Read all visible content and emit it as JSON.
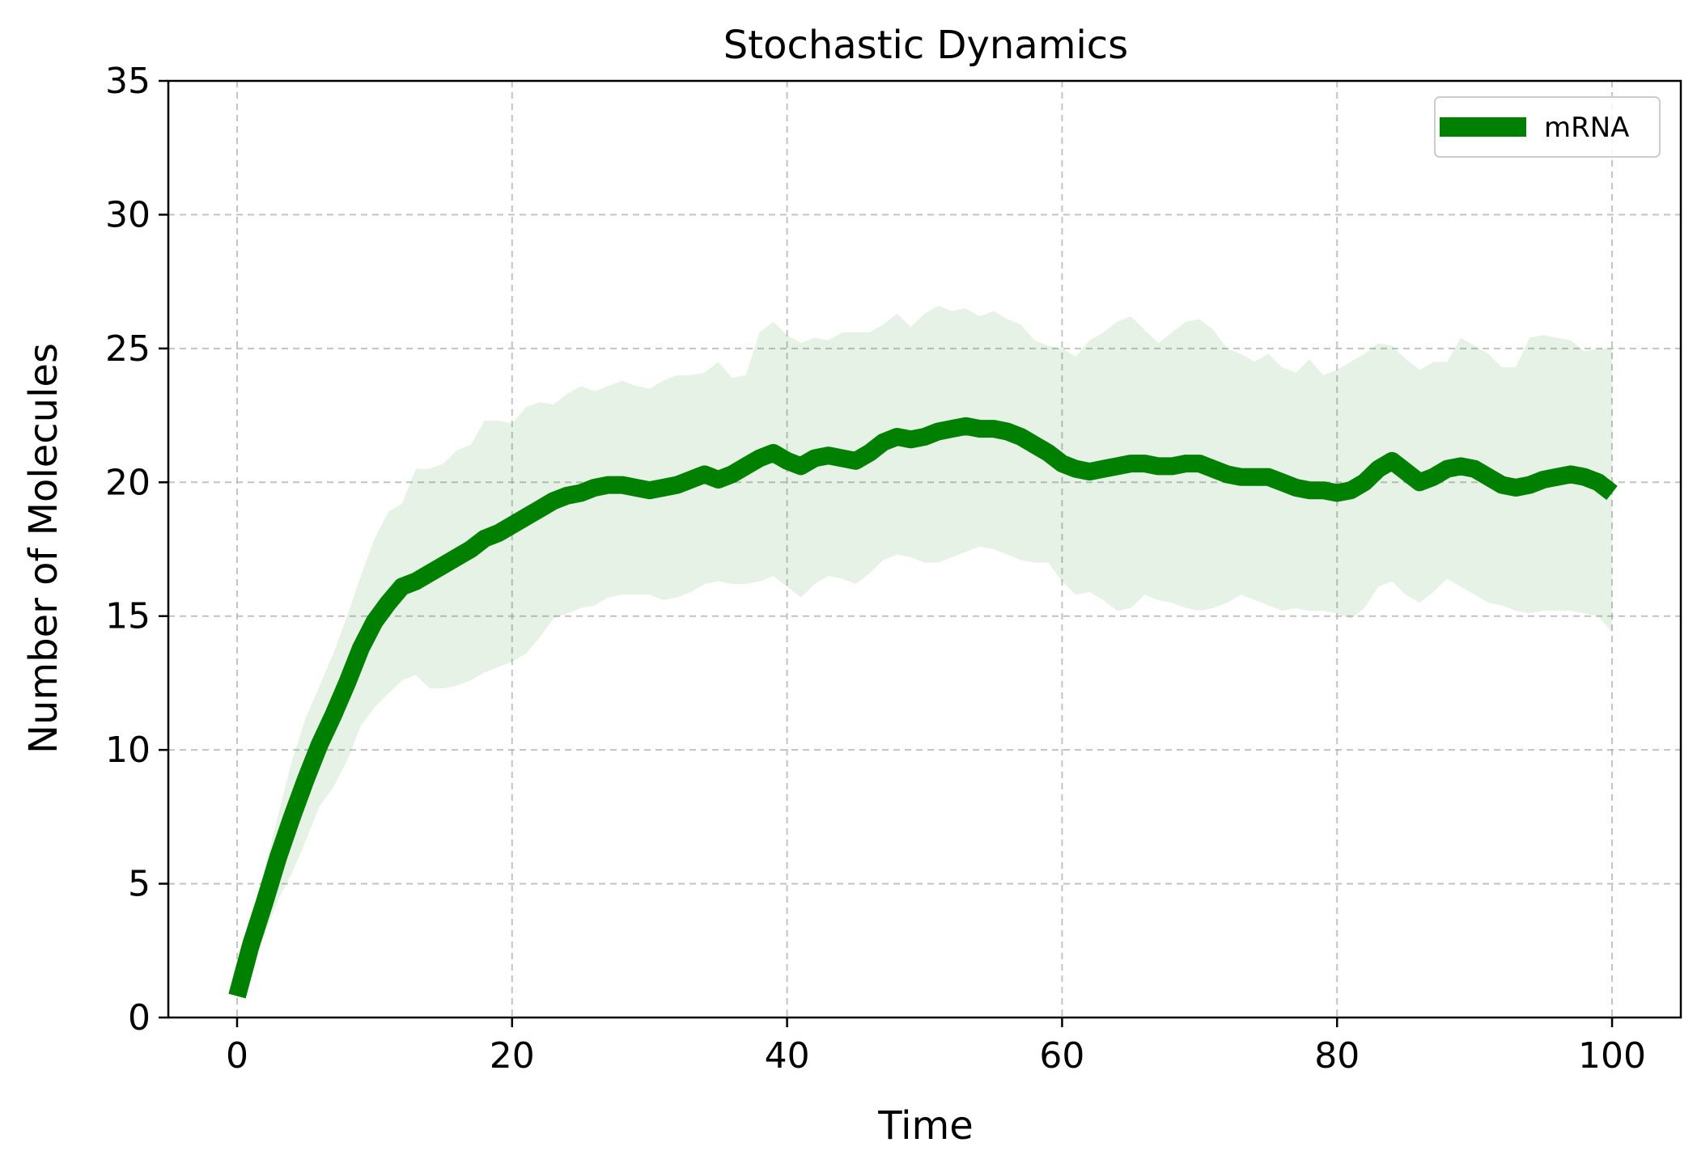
{
  "chart_data": {
    "type": "line",
    "title": "Stochastic Dynamics",
    "xlabel": "Time",
    "ylabel": "Number of Molecules",
    "xlim": [
      -5,
      105
    ],
    "ylim": [
      0,
      35
    ],
    "xticks": [
      0,
      20,
      40,
      60,
      80,
      100
    ],
    "yticks": [
      0,
      5,
      10,
      15,
      20,
      25,
      30,
      35
    ],
    "grid": true,
    "legend_position": "top-right",
    "series": [
      {
        "name": "mRNA",
        "color": "#008000",
        "band_color": "#008000",
        "x": [
          0,
          1,
          2,
          3,
          4,
          5,
          6,
          7,
          8,
          9,
          10,
          11,
          12,
          13,
          14,
          15,
          16,
          17,
          18,
          19,
          20,
          21,
          22,
          23,
          24,
          25,
          26,
          27,
          28,
          29,
          30,
          31,
          32,
          33,
          34,
          35,
          36,
          37,
          38,
          39,
          40,
          41,
          42,
          43,
          44,
          45,
          46,
          47,
          48,
          49,
          50,
          51,
          52,
          53,
          54,
          55,
          56,
          57,
          58,
          59,
          60,
          61,
          62,
          63,
          64,
          65,
          66,
          67,
          68,
          69,
          70,
          71,
          72,
          73,
          74,
          75,
          76,
          77,
          78,
          79,
          80,
          81,
          82,
          83,
          84,
          85,
          86,
          87,
          88,
          89,
          90,
          91,
          92,
          93,
          94,
          95,
          96,
          97,
          98,
          99,
          100
        ],
        "values": [
          0.8,
          2.7,
          4.3,
          6.0,
          7.5,
          8.9,
          10.2,
          11.3,
          12.5,
          13.8,
          14.8,
          15.5,
          16.1,
          16.3,
          16.6,
          16.9,
          17.2,
          17.5,
          17.9,
          18.1,
          18.4,
          18.7,
          19.0,
          19.3,
          19.5,
          19.6,
          19.8,
          19.9,
          19.9,
          19.8,
          19.7,
          19.8,
          19.9,
          20.1,
          20.3,
          20.1,
          20.3,
          20.6,
          20.9,
          21.1,
          20.8,
          20.6,
          20.9,
          21.0,
          20.9,
          20.8,
          21.1,
          21.5,
          21.7,
          21.6,
          21.7,
          21.9,
          22.0,
          22.1,
          22.0,
          22.0,
          21.9,
          21.7,
          21.4,
          21.1,
          20.7,
          20.5,
          20.4,
          20.5,
          20.6,
          20.7,
          20.7,
          20.6,
          20.6,
          20.7,
          20.7,
          20.5,
          20.3,
          20.2,
          20.2,
          20.2,
          20.0,
          19.8,
          19.7,
          19.7,
          19.6,
          19.7,
          20.0,
          20.5,
          20.8,
          20.4,
          20.0,
          20.2,
          20.5,
          20.6,
          20.5,
          20.2,
          19.9,
          19.8,
          19.9,
          20.1,
          20.2,
          20.3,
          20.2,
          20.0,
          19.6
        ],
        "upper": [
          1.0,
          3.4,
          5.5,
          7.6,
          9.6,
          11.2,
          12.4,
          13.6,
          15.0,
          16.5,
          17.9,
          18.9,
          19.2,
          20.5,
          20.5,
          20.7,
          21.2,
          21.4,
          22.3,
          22.3,
          22.2,
          22.8,
          23.0,
          22.9,
          23.3,
          23.6,
          23.4,
          23.6,
          23.8,
          23.6,
          23.5,
          23.8,
          24.0,
          24.0,
          24.1,
          24.5,
          23.9,
          24.0,
          25.6,
          26.0,
          25.5,
          25.2,
          25.4,
          25.3,
          25.6,
          25.6,
          25.6,
          25.9,
          26.3,
          25.8,
          26.3,
          26.6,
          26.4,
          26.5,
          26.2,
          26.4,
          26.1,
          25.9,
          25.3,
          25.1,
          25.0,
          24.7,
          25.3,
          25.6,
          26.0,
          26.2,
          25.7,
          25.2,
          25.6,
          26.0,
          26.1,
          25.7,
          25.0,
          24.8,
          24.5,
          24.8,
          24.3,
          24.1,
          24.6,
          24.0,
          24.2,
          24.5,
          24.8,
          25.2,
          25.1,
          24.6,
          24.2,
          24.5,
          24.5,
          25.4,
          25.1,
          24.8,
          24.3,
          24.3,
          25.4,
          25.5,
          25.4,
          25.3,
          24.9,
          25.0,
          25.0
        ],
        "lower": [
          0.6,
          2.0,
          3.1,
          4.4,
          5.4,
          6.6,
          7.9,
          8.6,
          9.6,
          10.9,
          11.6,
          12.1,
          12.6,
          12.8,
          12.3,
          12.3,
          12.4,
          12.6,
          12.9,
          13.1,
          13.3,
          13.6,
          14.2,
          14.9,
          15.1,
          15.3,
          15.4,
          15.7,
          15.8,
          15.8,
          15.8,
          15.6,
          15.7,
          15.9,
          16.2,
          16.3,
          16.2,
          16.2,
          16.3,
          16.5,
          16.1,
          15.7,
          16.2,
          16.5,
          16.4,
          16.2,
          16.6,
          17.1,
          17.3,
          17.2,
          17.0,
          17.0,
          17.2,
          17.4,
          17.6,
          17.5,
          17.3,
          17.1,
          17.0,
          17.0,
          16.3,
          15.8,
          15.9,
          15.6,
          15.2,
          15.3,
          15.8,
          15.6,
          15.5,
          15.3,
          15.2,
          15.3,
          15.5,
          15.8,
          15.6,
          15.4,
          15.2,
          15.3,
          15.2,
          15.2,
          15.1,
          14.9,
          15.3,
          16.1,
          16.3,
          15.8,
          15.5,
          15.9,
          16.4,
          16.1,
          15.8,
          15.5,
          15.4,
          15.2,
          15.1,
          15.2,
          15.2,
          15.2,
          15.1,
          15.0,
          14.4
        ]
      }
    ]
  }
}
